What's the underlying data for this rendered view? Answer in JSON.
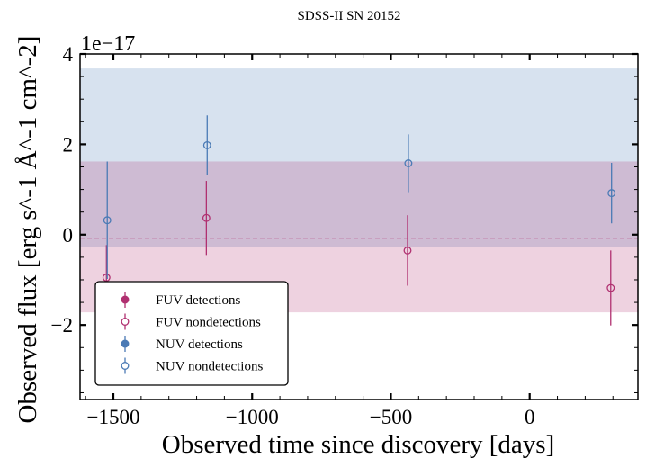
{
  "chart_data": {
    "type": "scatter",
    "title": "SDSS-II SN 20152",
    "xlabel": "Observed time since discovery [days]",
    "ylabel": "Observed flux [erg s^-1 Å^-1 cm^-2]",
    "y_offset_label": "1e−17",
    "xlim": [
      -1620,
      390
    ],
    "ylim": [
      -3.65,
      4.0
    ],
    "x_ticks": [
      -1500,
      -1000,
      -500,
      0
    ],
    "x_tick_labels": [
      "−1500",
      "−1000",
      "−500",
      "0"
    ],
    "y_ticks": [
      -2,
      0,
      2,
      4
    ],
    "y_tick_labels": [
      "−2",
      "0",
      "2",
      "4"
    ],
    "bands": [
      {
        "name": "NUV",
        "y0": -0.28,
        "y1": 3.68,
        "mean": 1.72,
        "color": "#4a7ab5"
      },
      {
        "name": "FUV",
        "y0": -1.72,
        "y1": 1.62,
        "mean": -0.08,
        "color": "#b03070"
      }
    ],
    "series": [
      {
        "name": "FUV detections",
        "marker": "filled",
        "color": "#b03070",
        "points": []
      },
      {
        "name": "FUV nondetections",
        "marker": "open",
        "color": "#b03070",
        "points": [
          {
            "x": -1525,
            "y": -0.95,
            "err": 0.72
          },
          {
            "x": -1165,
            "y": 0.37,
            "err": 0.82
          },
          {
            "x": -440,
            "y": -0.35,
            "err": 0.78
          },
          {
            "x": 292,
            "y": -1.18,
            "err": 0.83
          }
        ]
      },
      {
        "name": "NUV detections",
        "marker": "filled",
        "color": "#4a7ab5",
        "points": []
      },
      {
        "name": "NUV nondetections",
        "marker": "open",
        "color": "#4a7ab5",
        "points": [
          {
            "x": -1522,
            "y": 0.32,
            "err": 1.3
          },
          {
            "x": -1162,
            "y": 1.98,
            "err": 0.66
          },
          {
            "x": -437,
            "y": 1.58,
            "err": 0.64
          },
          {
            "x": 295,
            "y": 0.92,
            "err": 0.67
          }
        ]
      }
    ],
    "legend": {
      "placement": "lower-left",
      "entries": [
        "FUV detections",
        "FUV nondetections",
        "NUV detections",
        "NUV nondetections"
      ]
    },
    "grid": false
  }
}
